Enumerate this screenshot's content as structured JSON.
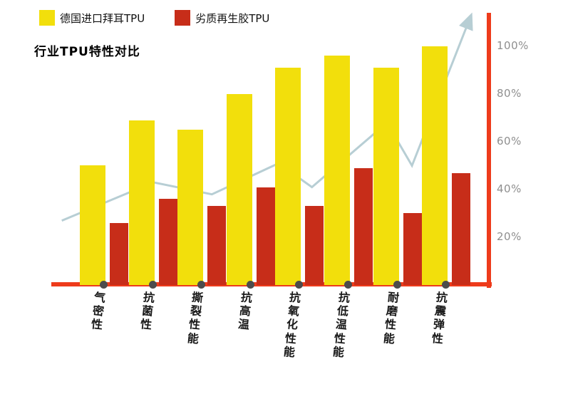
{
  "title": "行业TPU特性对比",
  "chart_data": {
    "type": "bar",
    "title": "行业TPU特性对比",
    "categories": [
      "气密性",
      "抗菌性",
      "撕裂性能",
      "抗高温",
      "抗氧化性能",
      "抗低温性能",
      "耐磨性能",
      "抗震弹性"
    ],
    "series": [
      {
        "name": "德国进口拜耳TPU",
        "color": "#f2df0c",
        "values": [
          50,
          69,
          65,
          80,
          91,
          96,
          91,
          100
        ]
      },
      {
        "name": "劣质再生胶TPU",
        "color": "#c72d19",
        "values": [
          26,
          36,
          33,
          41,
          33,
          49,
          30,
          47
        ]
      }
    ],
    "trend": {
      "name": "trend-arrow-line",
      "color": "#b7ced4",
      "points": [
        [
          0.02,
          27
        ],
        [
          0.24,
          43
        ],
        [
          0.38,
          38
        ],
        [
          0.54,
          51
        ],
        [
          0.62,
          41
        ],
        [
          0.8,
          68
        ],
        [
          0.86,
          50
        ],
        [
          0.995,
          110
        ]
      ]
    },
    "y_ticks": [
      {
        "label": "20%",
        "value": 20
      },
      {
        "label": "40%",
        "value": 40
      },
      {
        "label": "60%",
        "value": 60
      },
      {
        "label": "80%",
        "value": 80
      },
      {
        "label": "100%",
        "value": 100
      }
    ],
    "ylim": [
      0,
      112
    ],
    "grid": false,
    "legend_position": "top-left",
    "axis_color": "#ee3b1b",
    "dot_color": "#4c4c4c",
    "tick_color": "#8f8f8f",
    "xlabel": "",
    "ylabel": ""
  }
}
